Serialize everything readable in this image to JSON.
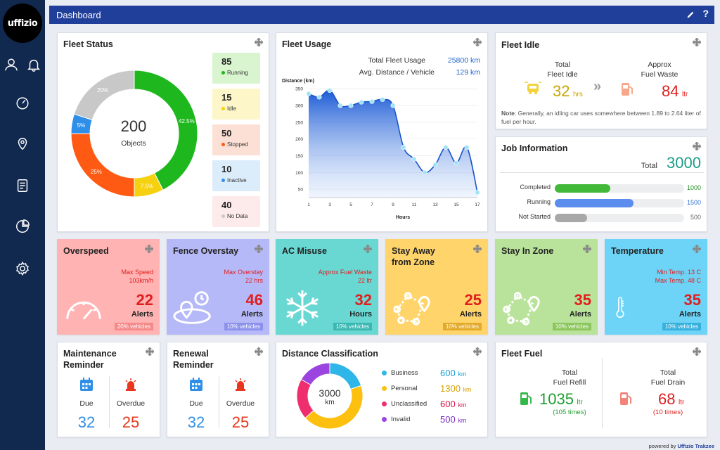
{
  "app": {
    "logo": "uffizio",
    "powered_by": "powered by",
    "powered_brand": "Uffizio Trakzee"
  },
  "header": {
    "title": "Dashboard",
    "edit_icon": "pencil-icon",
    "help_label": "?"
  },
  "sidebar": {
    "items": [
      "user-icon",
      "bell-icon",
      "speedometer-icon",
      "map-pin-icon",
      "report-icon",
      "pie-chart-icon",
      "settings-icon"
    ]
  },
  "fleet_status": {
    "title": "Fleet Status",
    "total": "200",
    "total_label": "Objects",
    "slices": [
      {
        "label": "Running",
        "value": 85,
        "pct": "42.5%",
        "color": "#1eb81e",
        "bg": "#d8f5d0"
      },
      {
        "label": "Idle",
        "value": 15,
        "pct": "7.5%",
        "color": "#f5d10f",
        "bg": "#fdf6c8"
      },
      {
        "label": "Stopped",
        "value": 50,
        "pct": "25%",
        "color": "#ff5a14",
        "bg": "#fde0d5"
      },
      {
        "label": "Inactive",
        "value": 10,
        "pct": "5%",
        "color": "#2f8fe8",
        "bg": "#dbecfb"
      },
      {
        "label": "No Data",
        "value": 40,
        "pct": "20%",
        "color": "#c8c8c8",
        "bg": "#fdeaea"
      }
    ]
  },
  "fleet_usage": {
    "title": "Fleet Usage",
    "total_label": "Total Fleet Usage",
    "total_value": "25800 km",
    "avg_label": "Avg. Distance / Vehicle",
    "avg_value": "129 km",
    "chart_data": {
      "type": "area",
      "ylabel": "Distance (km)",
      "xlabel": "Hours",
      "x_ticks": [
        "1",
        "3",
        "5",
        "7",
        "9",
        "11",
        "13",
        "15",
        "17"
      ],
      "y_ticks": [
        "50",
        "100",
        "150",
        "200",
        "250",
        "300",
        "350"
      ],
      "ylim": [
        25,
        365
      ],
      "xlim": [
        1,
        17
      ],
      "x": [
        1,
        2,
        3,
        4,
        5,
        6,
        7,
        8,
        9,
        10,
        11,
        12,
        13,
        14,
        15,
        16,
        17
      ],
      "values": [
        335,
        325,
        345,
        300,
        300,
        310,
        312,
        318,
        300,
        175,
        140,
        100,
        123,
        175,
        128,
        175,
        40
      ]
    }
  },
  "fleet_idle": {
    "title": "Fleet Idle",
    "idle_label_1": "Total",
    "idle_label_2": "Fleet Idle",
    "idle_value": "32",
    "idle_unit": "hrs",
    "waste_label_1": "Approx",
    "waste_label_2": "Fuel Waste",
    "waste_value": "84",
    "waste_unit": "ltr",
    "note_bold": "Note",
    "note_text": ": Generally, an idling car uses somewhere between 1.89 to 2.64 liter of fuel per hour."
  },
  "job_info": {
    "title": "Job Information",
    "total_label": "Total",
    "total_value": "3000",
    "rows": [
      {
        "label": "Completed",
        "value": "1000",
        "fraction": 0.43,
        "color": "#43b939",
        "text_color": "#1f8f1f"
      },
      {
        "label": "Running",
        "value": "1500",
        "fraction": 0.61,
        "color": "#5b8def",
        "text_color": "#2f6fd0"
      },
      {
        "label": "Not Started",
        "value": "500",
        "fraction": 0.25,
        "color": "#a8a8a8",
        "text_color": "#666666"
      }
    ]
  },
  "metrics": [
    {
      "title": "Overspeed",
      "title2": "",
      "sub1": "Max Speed",
      "sub2": "103km/h",
      "value": "22",
      "unit": "Alerts",
      "veh": "20% vehicles",
      "bg": "#ffb3b3",
      "veh_bg": "#f48a8a",
      "icon": "speedometer-icon"
    },
    {
      "title": "Fence Overstay",
      "title2": "",
      "sub1": "Max Overstay",
      "sub2": "22 hrs",
      "value": "46",
      "unit": "Alerts",
      "veh": "10% vehicles",
      "bg": "#b6b9f8",
      "veh_bg": "#8c92ec",
      "icon": "geofence-icon"
    },
    {
      "title": "AC Misuse",
      "title2": "",
      "sub1": "Approx Fuel Waste",
      "sub2": "22 ltr",
      "value": "32",
      "unit": "Hours",
      "veh": "10% vehicles",
      "bg": "#69d8d3",
      "veh_bg": "#3bb8b2",
      "icon": "snowflake-icon"
    },
    {
      "title": "Stay Away",
      "title2": "from Zone",
      "sub1": "",
      "sub2": "",
      "value": "25",
      "unit": "Alerts",
      "veh": "10% vehicles",
      "bg": "#ffd56b",
      "veh_bg": "#e3aa2c",
      "icon": "zone-icon"
    },
    {
      "title": "Stay In Zone",
      "title2": "",
      "sub1": "",
      "sub2": "",
      "value": "35",
      "unit": "Alerts",
      "veh": "10% vehicles",
      "bg": "#b9e39a",
      "veh_bg": "#8cc65e",
      "icon": "zone-icon"
    },
    {
      "title": "Temperature",
      "title2": "",
      "sub1": "Min Temp. 13 C",
      "sub2": "Max Temp. 48 C",
      "value": "35",
      "unit": "Alerts",
      "veh": "10% vehicles",
      "bg": "#6dd4f7",
      "veh_bg": "#36b1de",
      "icon": "thermometer-icon"
    }
  ],
  "maintenance": {
    "title1": "Maintenance",
    "title2": "Reminder",
    "due_label": "Due",
    "due_value": "32",
    "overdue_label": "Overdue",
    "overdue_value": "25"
  },
  "renewal": {
    "title1": "Renewal",
    "title2": "Reminder",
    "due_label": "Due",
    "due_value": "32",
    "overdue_label": "Overdue",
    "overdue_value": "25"
  },
  "distance_class": {
    "title": "Distance Classification",
    "center_value": "3000",
    "center_unit": "km",
    "rows": [
      {
        "label": "Business",
        "value": "600",
        "unit": "km",
        "color": "#2eb6e8"
      },
      {
        "label": "Personal",
        "value": "1300",
        "unit": "km",
        "color": "#fdc00f"
      },
      {
        "label": "Unclassified",
        "value": "600",
        "unit": "km",
        "color": "#ee2e6d"
      },
      {
        "label": "Invalid",
        "value": "500",
        "unit": "km",
        "color": "#9b44e0"
      }
    ],
    "chart_data": {
      "type": "pie",
      "categories": [
        "Business",
        "Personal",
        "Unclassified",
        "Invalid"
      ],
      "values": [
        600,
        1300,
        600,
        500
      ]
    }
  },
  "fleet_fuel": {
    "title": "Fleet Fuel",
    "refill_label_1": "Total",
    "refill_label_2": "Fuel Refill",
    "refill_value": "1035",
    "refill_unit": "ltr",
    "refill_times": "(105 times)",
    "drain_label_1": "Total",
    "drain_label_2": "Fuel Drain",
    "drain_value": "68",
    "drain_unit": "ltr",
    "drain_times": "(10 times)"
  }
}
